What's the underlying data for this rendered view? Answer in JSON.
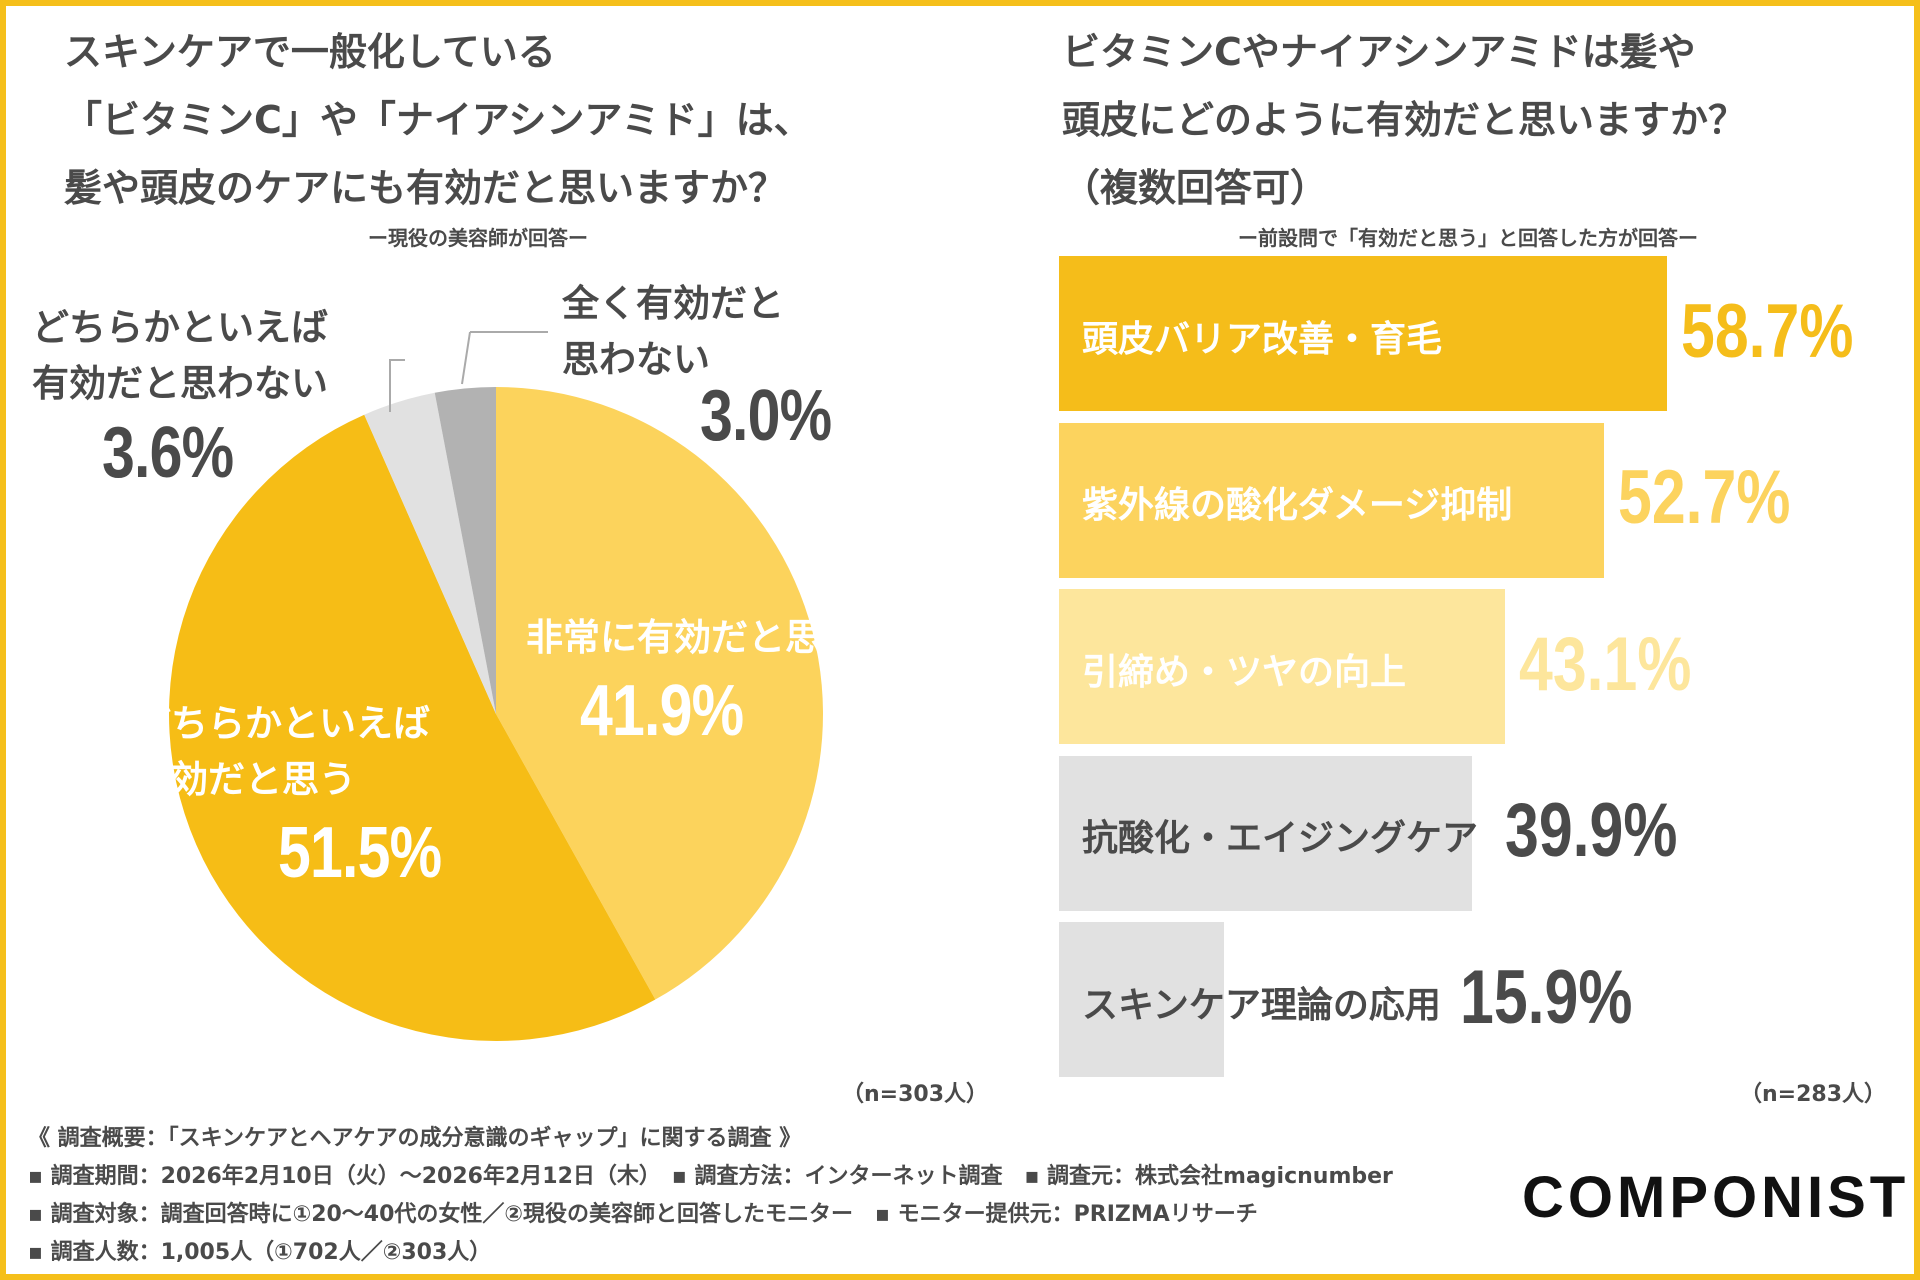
{
  "left": {
    "title_lines": [
      "スキンケアで一般化している",
      "「ビタミンC」や「ナイアシンアミド」は、",
      "髪や頭皮のケアにも有効だと思いますか？"
    ],
    "subtitle": "ー現役の美容師が回答ー",
    "n_label": "（n=303人）"
  },
  "right": {
    "title_lines": [
      "ビタミンCやナイアシンアミドは髪や",
      "頭皮にどのように有効だと思いますか？",
      "（複数回答可）"
    ],
    "subtitle": "ー前設問で「有効だと思う」と回答した方が回答ー",
    "n_label": "（n=283人）"
  },
  "chart_data": [
    {
      "type": "pie",
      "start": "top",
      "direction": "clockwise",
      "slices": [
        {
          "label": "非常に有効だと思う",
          "label_lines": [
            "非常に有効だと思う"
          ],
          "value": 41.9,
          "value_label": "41.9%",
          "color": "#fcd35c",
          "text_color": "#ffffff"
        },
        {
          "label": "どちらかといえば有効だと思う",
          "label_lines": [
            "どちらかといえば",
            "有効だと思う"
          ],
          "value": 51.5,
          "value_label": "51.5%",
          "color": "#f6bd16",
          "text_color": "#ffffff"
        },
        {
          "label": "どちらかといえば有効だと思わない",
          "label_lines": [
            "どちらかといえば",
            "有効だと思わない"
          ],
          "value": 3.6,
          "value_label": "3.6%",
          "color": "#e1e1e1",
          "text_color": "#4a4a4a"
        },
        {
          "label": "全く有効だと思わない",
          "label_lines": [
            "全く有効だと",
            "思わない"
          ],
          "value": 3.0,
          "value_label": "3.0%",
          "color": "#b2b2b2",
          "text_color": "#4a4a4a"
        }
      ]
    },
    {
      "type": "bar",
      "orientation": "horizontal",
      "unit": "%",
      "categories": [
        "頭皮バリア改善・育毛",
        "紫外線の酸化ダメージ抑制",
        "引締め・ツヤの向上",
        "抗酸化・エイジングケア",
        "スキンケア理論の応用"
      ],
      "values": [
        58.7,
        52.7,
        43.1,
        39.9,
        15.9
      ],
      "value_labels": [
        "58.7%",
        "52.7%",
        "43.1%",
        "39.9%",
        "15.9%"
      ],
      "bar_colors": [
        "#f5bd1a",
        "#fcd35e",
        "#fde69c",
        "#e1e1e1",
        "#e1e1e1"
      ],
      "label_colors": [
        "#ffffff",
        "#ffffff",
        "#ffffff",
        "#4a4a4a",
        "#4a4a4a"
      ],
      "value_colors": [
        "#f5bd1a",
        "#fcd35e",
        "#fde69c",
        "#4a4a4a",
        "#4a4a4a"
      ]
    }
  ],
  "footer": {
    "lines": [
      "《 調査概要：「スキンケアとヘアケアの成分意識のギャップ」に関する調査 》",
      "▪ 調査期間：2026年2月10日（火）～2026年2月12日（木）　▪ 調査方法：インターネット調査　▪ 調査元：株式会社magicnumber",
      "▪ 調査対象：調査回答時に①20～40代の女性／②現役の美容師と回答したモニター　▪ モニター提供元：PRIZMAリサーチ",
      "▪ 調査人数：1,005人（①702人／②303人）"
    ]
  },
  "logo": "COMPONIST",
  "colors": {
    "frame": "#f5bf1a",
    "text": "#4a4a4a"
  }
}
